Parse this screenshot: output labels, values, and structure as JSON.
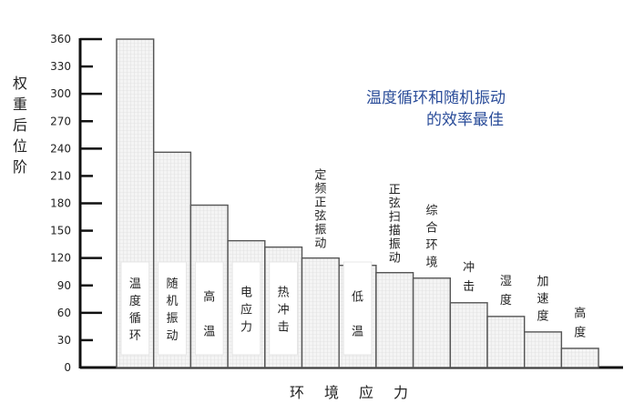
{
  "chart_data": {
    "type": "bar",
    "title": "",
    "xlabel": "环境应力",
    "ylabel": "权重后位阶",
    "ylim": [
      0,
      360
    ],
    "yticks": [
      0,
      30,
      60,
      90,
      120,
      150,
      180,
      210,
      240,
      270,
      300,
      330,
      360
    ],
    "grid": false,
    "categories": [
      "温度循环",
      "随机振动",
      "高温",
      "电应力",
      "热冲击",
      "定频正弦振动",
      "低温",
      "正弦扫描振动",
      "综合环境",
      "冲击",
      "湿度",
      "加速度",
      "高度"
    ],
    "values": [
      360,
      236,
      178,
      139,
      132,
      120,
      112,
      104,
      98,
      71,
      56,
      39,
      21
    ],
    "annotation": [
      "温度循环和随机振动",
      "的效率最佳"
    ],
    "colors": {
      "bar_fill": "#f2f2f2",
      "bar_stroke": "#555555",
      "annotation": "#2a4c99"
    }
  }
}
